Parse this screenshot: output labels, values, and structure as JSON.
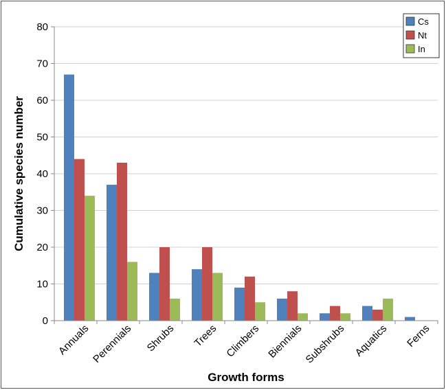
{
  "chart_data": {
    "type": "bar",
    "title": "",
    "xlabel": "Growth forms",
    "ylabel": "Cumulative species number",
    "ylim": [
      0,
      80
    ],
    "yticks": [
      0,
      10,
      20,
      30,
      40,
      50,
      60,
      70,
      80
    ],
    "grid": true,
    "legend_position": "top-right",
    "categories": [
      "Annuals",
      "Perennials",
      "Shrubs",
      "Trees",
      "Climbers",
      "Biennials",
      "Subshrubs",
      "Aquatics",
      "Ferns"
    ],
    "series": [
      {
        "name": "Cs",
        "color": "#4F81BD",
        "values": [
          67,
          37,
          13,
          14,
          9,
          6,
          2,
          4,
          1
        ]
      },
      {
        "name": "Nt",
        "color": "#C0504D",
        "values": [
          44,
          43,
          20,
          20,
          12,
          8,
          4,
          3,
          0
        ]
      },
      {
        "name": "In",
        "color": "#9BBB59",
        "values": [
          34,
          16,
          6,
          13,
          5,
          2,
          2,
          6,
          0
        ]
      }
    ]
  }
}
